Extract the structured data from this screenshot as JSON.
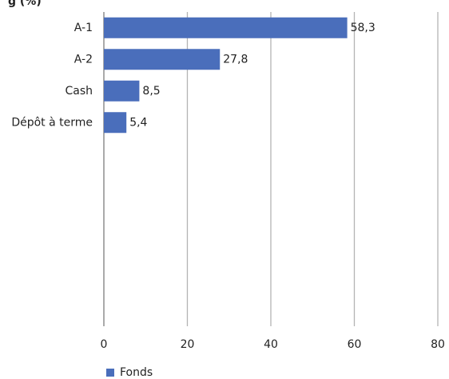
{
  "chart_data": {
    "type": "bar",
    "orientation": "horizontal",
    "title": "g (%)",
    "categories": [
      "A-1",
      "A-2",
      "Cash",
      "Dépôt à terme"
    ],
    "series": [
      {
        "name": "Fonds",
        "color": "#4a6ebb",
        "values": [
          58.3,
          27.8,
          8.5,
          5.4
        ],
        "value_labels": [
          "58,3",
          "27,8",
          "8,5",
          "5,4"
        ]
      }
    ],
    "xlim": [
      0,
      80
    ],
    "xticks": [
      0,
      20,
      40,
      60,
      80
    ],
    "grid": true,
    "legend": "bottom"
  }
}
